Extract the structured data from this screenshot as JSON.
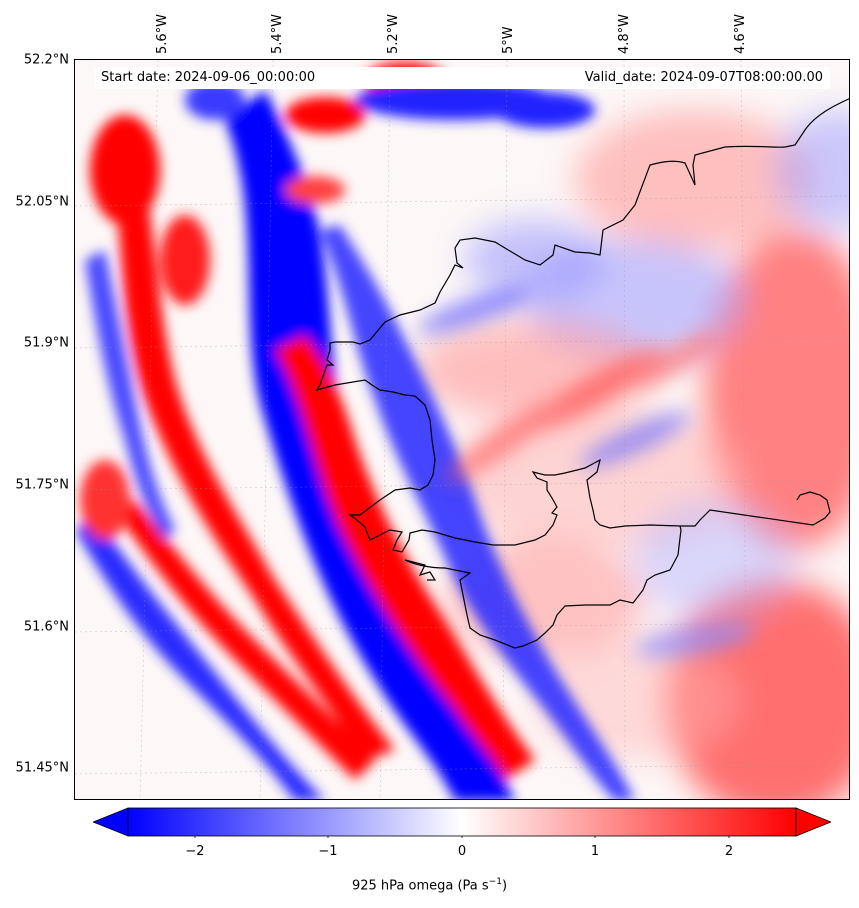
{
  "info": {
    "start_date": "Start date: 2024-09-06_00:00:00",
    "valid_date": "Valid_date: 2024-09-07T08:00:00.00"
  },
  "map": {
    "lat_labels": [
      "52.2°N",
      "52.05°N",
      "51.9°N",
      "51.75°N",
      "51.6°N",
      "51.45°N"
    ],
    "lon_labels": [
      "5.6°W",
      "5.4°W",
      "5.2°W",
      "5°W",
      "4.8°W",
      "4.6°W"
    ],
    "colors": {
      "negative": "#0000ff",
      "neutral": "#ffffff",
      "positive": "#ff0000",
      "coast": "#000000"
    }
  },
  "colorbar": {
    "ticks": [
      "−2",
      "−1",
      "0",
      "1",
      "2"
    ],
    "range": [
      -2.6,
      2.6
    ],
    "extend": "both",
    "label": "925 hPa omega (Pa s",
    "label_exp": "−1",
    "label_end": ")"
  }
}
